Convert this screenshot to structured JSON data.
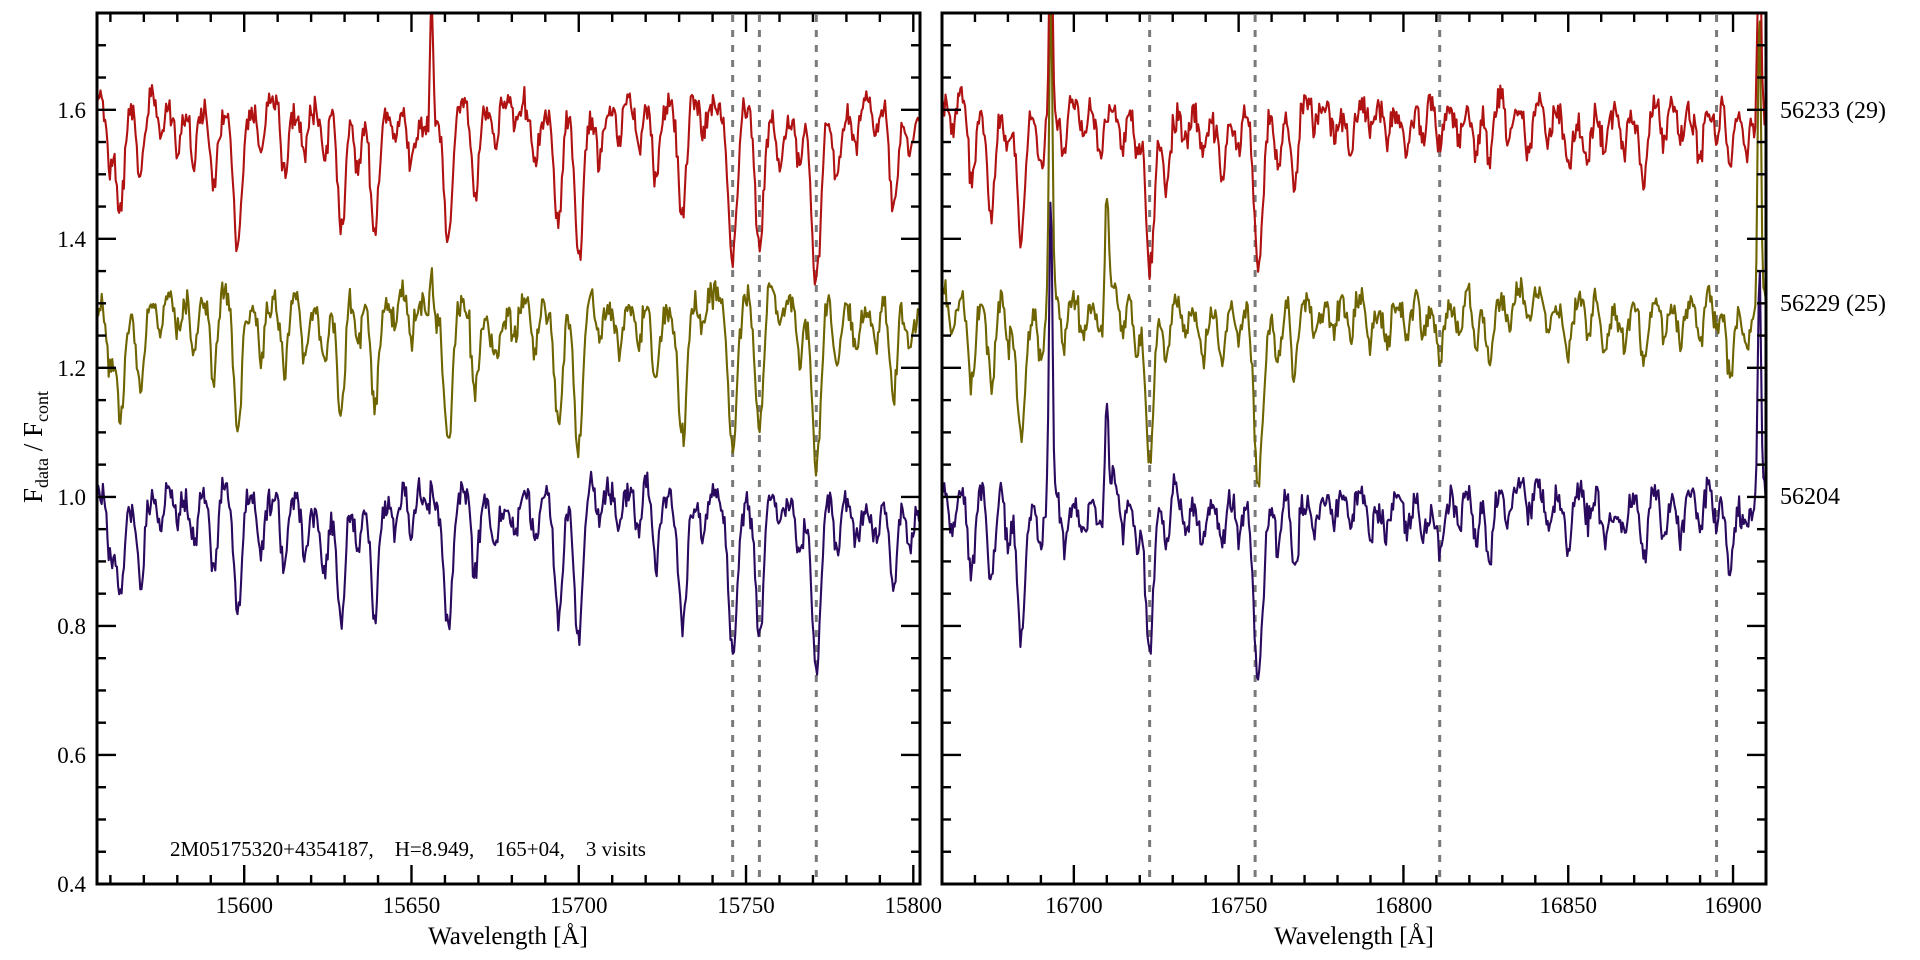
{
  "colors": {
    "background": "#ffffff",
    "axis": "#000000",
    "dashed_marker": "#7a7a7a",
    "red_visit": "#B01212",
    "olive_visit": "#6E6400",
    "navy_visit": "#2A0A5E"
  },
  "chart_data": {
    "type": "line",
    "title": "",
    "ylabel_parts": [
      "F",
      "data",
      " / ",
      "F",
      "cont"
    ],
    "ylim": [
      0.4,
      1.75
    ],
    "yticks": [
      0.4,
      0.6,
      0.8,
      1.0,
      1.2,
      1.4,
      1.6
    ],
    "y_minor_step": 0.05,
    "annotation": "2M05175320+4354187,    H=8.949,    165+04,    3 visits",
    "legend_position": "right-outside",
    "grid": false,
    "panels": [
      {
        "xlabel": "Wavelength [Å]",
        "xlim": [
          15556,
          15802
        ],
        "xticks": [
          15600,
          15650,
          15700,
          15750,
          15800
        ],
        "x_minor_step": 10,
        "dashed_lines": [
          15746,
          15754,
          15771
        ],
        "absorption_lines": [
          [
            15560,
            0.1
          ],
          [
            15563,
            0.16
          ],
          [
            15569,
            0.12
          ],
          [
            15575,
            0.06
          ],
          [
            15580,
            0.05
          ],
          [
            15585,
            0.07
          ],
          [
            15591,
            0.13
          ],
          [
            15598,
            0.2
          ],
          [
            15605,
            0.07
          ],
          [
            15612,
            0.12
          ],
          [
            15618,
            0.07
          ],
          [
            15624,
            0.09
          ],
          [
            15629,
            0.19
          ],
          [
            15634,
            0.08
          ],
          [
            15639,
            0.17
          ],
          [
            15645,
            0.05
          ],
          [
            15650,
            0.07
          ],
          [
            15656,
            0.05
          ],
          [
            15661,
            0.21
          ],
          [
            15669,
            0.13
          ],
          [
            15675,
            0.06
          ],
          [
            15681,
            0.05
          ],
          [
            15687,
            0.08
          ],
          [
            15694,
            0.18
          ],
          [
            15700,
            0.24
          ],
          [
            15706,
            0.06
          ],
          [
            15712,
            0.05
          ],
          [
            15718,
            0.07
          ],
          [
            15723,
            0.12
          ],
          [
            15731,
            0.19
          ],
          [
            15737,
            0.06
          ],
          [
            15746,
            0.23
          ],
          [
            15754,
            0.22
          ],
          [
            15760,
            0.06
          ],
          [
            15766,
            0.08
          ],
          [
            15771,
            0.27
          ],
          [
            15777,
            0.1
          ],
          [
            15783,
            0.05
          ],
          [
            15789,
            0.06
          ],
          [
            15794,
            0.15
          ],
          [
            15799,
            0.06
          ]
        ]
      },
      {
        "xlabel": "Wavelength [Å]",
        "xlim": [
          16660,
          16910
        ],
        "xticks": [
          16700,
          16750,
          16800,
          16850,
          16900
        ],
        "x_minor_step": 10,
        "dashed_lines": [
          16723,
          16755,
          16811,
          16895
        ],
        "absorption_lines": [
          [
            16663,
            0.06
          ],
          [
            16669,
            0.12
          ],
          [
            16675,
            0.15
          ],
          [
            16680,
            0.07
          ],
          [
            16684,
            0.2
          ],
          [
            16690,
            0.07
          ],
          [
            16697,
            0.08
          ],
          [
            16703,
            0.05
          ],
          [
            16708,
            0.06
          ],
          [
            16715,
            0.07
          ],
          [
            16719,
            0.08
          ],
          [
            16723,
            0.24
          ],
          [
            16728,
            0.1
          ],
          [
            16734,
            0.05
          ],
          [
            16739,
            0.06
          ],
          [
            16745,
            0.07
          ],
          [
            16750,
            0.06
          ],
          [
            16756,
            0.26
          ],
          [
            16762,
            0.08
          ],
          [
            16767,
            0.13
          ],
          [
            16773,
            0.05
          ],
          [
            16779,
            0.04
          ],
          [
            16784,
            0.06
          ],
          [
            16790,
            0.05
          ],
          [
            16795,
            0.04
          ],
          [
            16801,
            0.06
          ],
          [
            16806,
            0.05
          ],
          [
            16811,
            0.07
          ],
          [
            16817,
            0.05
          ],
          [
            16822,
            0.09
          ],
          [
            16826,
            0.11
          ],
          [
            16832,
            0.05
          ],
          [
            16838,
            0.06
          ],
          [
            16844,
            0.05
          ],
          [
            16850,
            0.07
          ],
          [
            16856,
            0.05
          ],
          [
            16861,
            0.06
          ],
          [
            16867,
            0.05
          ],
          [
            16873,
            0.11
          ],
          [
            16879,
            0.06
          ],
          [
            16884,
            0.05
          ],
          [
            16890,
            0.07
          ],
          [
            16895,
            0.05
          ],
          [
            16899,
            0.1
          ],
          [
            16904,
            0.05
          ]
        ]
      }
    ],
    "series": [
      {
        "name": "56233 (29)",
        "color": "#B01212",
        "offset": 1.6,
        "emission_spikes": [
          [
            15656,
            0.23
          ],
          [
            16693,
            0.32
          ],
          [
            16908,
            0.3
          ]
        ]
      },
      {
        "name": "56229 (25)",
        "color": "#6E6400",
        "offset": 1.3,
        "emission_spikes": [
          [
            15656,
            0.13
          ],
          [
            16693,
            0.48
          ],
          [
            16710,
            0.17
          ],
          [
            16908,
            0.45
          ]
        ]
      },
      {
        "name": "56204",
        "color": "#2A0A5E",
        "offset": 1.0,
        "emission_spikes": [
          [
            15656,
            0.08
          ],
          [
            16693,
            0.45
          ],
          [
            16710,
            0.13
          ],
          [
            16908,
            0.35
          ]
        ]
      }
    ]
  }
}
